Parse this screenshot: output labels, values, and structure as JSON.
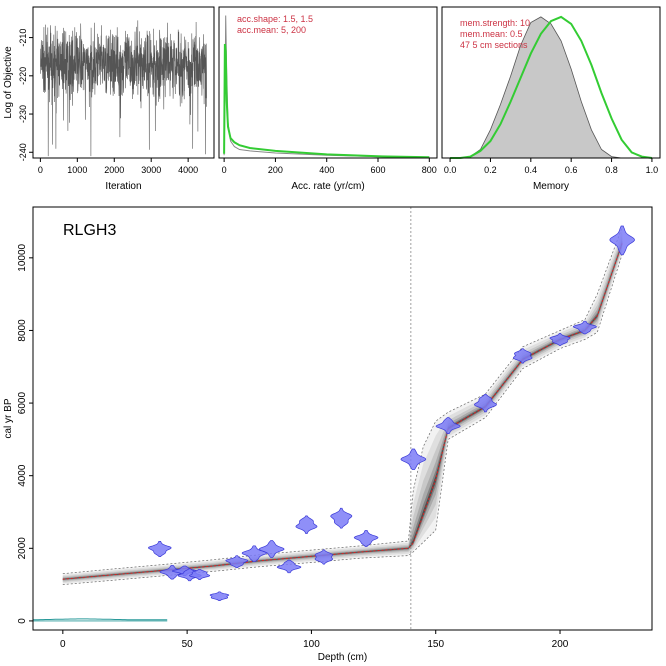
{
  "chart_data": [
    {
      "id": "iterations",
      "type": "line",
      "xlabel": "Iteration",
      "ylabel": "Log of Objective",
      "xlim": [
        -200,
        4700
      ],
      "ylim": [
        -241.5,
        -202
      ],
      "xticks": [
        0,
        1000,
        2000,
        3000,
        4000
      ],
      "yticks": [
        -240,
        -230,
        -220,
        -210
      ],
      "n_iterations": 4500,
      "trace_mean": -217,
      "trace_spread": 7,
      "color": "#555555"
    },
    {
      "id": "acc-rate",
      "type": "line",
      "xlabel": "Acc. rate (yr/cm)",
      "xlim": [
        -20,
        830
      ],
      "xticks": [
        0,
        200,
        400,
        600,
        800
      ],
      "annotations": [
        "acc.shape:  1.5, 1.5",
        "acc.mean:  5, 200"
      ],
      "series": [
        {
          "name": "posterior",
          "color": "#888888",
          "x": [
            0,
            3,
            6,
            10,
            15,
            25,
            40,
            60,
            100,
            200,
            400,
            600,
            800
          ],
          "y": [
            0.02,
            0.35,
            1.0,
            0.6,
            0.25,
            0.12,
            0.08,
            0.06,
            0.05,
            0.035,
            0.02,
            0.01,
            0.005
          ]
        },
        {
          "name": "prior",
          "color": "#33cc33",
          "x": [
            0,
            3,
            6,
            10,
            15,
            25,
            40,
            60,
            100,
            200,
            400,
            600,
            800
          ],
          "y": [
            0.03,
            0.8,
            0.75,
            0.4,
            0.22,
            0.14,
            0.11,
            0.09,
            0.07,
            0.05,
            0.025,
            0.012,
            0.005
          ]
        }
      ]
    },
    {
      "id": "memory",
      "type": "area",
      "xlabel": "Memory",
      "xlim": [
        -0.04,
        1.04
      ],
      "xticks": [
        0.0,
        0.2,
        0.4,
        0.6,
        0.8,
        1.0
      ],
      "annotations": [
        "mem.strength:  10",
        "mem.mean:  0.5",
        "47 5 cm sections"
      ],
      "series": [
        {
          "name": "posterior",
          "color": "#555555",
          "fill": "#c8c8c8",
          "x": [
            0.05,
            0.1,
            0.15,
            0.2,
            0.25,
            0.3,
            0.35,
            0.4,
            0.45,
            0.5,
            0.55,
            0.6,
            0.65,
            0.7,
            0.75,
            0.8,
            0.85
          ],
          "y": [
            0.0,
            0.01,
            0.06,
            0.2,
            0.38,
            0.58,
            0.8,
            0.96,
            1.0,
            0.95,
            0.83,
            0.63,
            0.4,
            0.2,
            0.06,
            0.01,
            0.0
          ]
        },
        {
          "name": "prior",
          "color": "#33cc33",
          "x": [
            0.0,
            0.05,
            0.1,
            0.15,
            0.2,
            0.25,
            0.3,
            0.35,
            0.4,
            0.45,
            0.5,
            0.55,
            0.6,
            0.65,
            0.7,
            0.75,
            0.8,
            0.85,
            0.9,
            0.95,
            1.0
          ],
          "y": [
            0.0,
            0.0,
            0.01,
            0.05,
            0.12,
            0.24,
            0.4,
            0.57,
            0.74,
            0.88,
            0.97,
            1.0,
            0.95,
            0.83,
            0.66,
            0.46,
            0.28,
            0.13,
            0.04,
            0.01,
            0.0
          ]
        }
      ]
    },
    {
      "id": "age-depth",
      "type": "line",
      "title": "RLGH3",
      "xlabel": "Depth (cm)",
      "ylabel": "cal yr BP",
      "xlim": [
        -12,
        237
      ],
      "ylim": [
        -250,
        11400
      ],
      "xticks": [
        0,
        50,
        100,
        150,
        200
      ],
      "yticks": [
        0,
        2000,
        4000,
        6000,
        8000,
        10000
      ],
      "hiatus_depth": 140,
      "model_mean": {
        "depth": [
          0,
          20,
          40,
          60,
          80,
          100,
          120,
          139,
          141,
          150,
          155,
          170,
          185,
          200,
          210,
          215,
          225
        ],
        "age": [
          1150,
          1270,
          1390,
          1510,
          1660,
          1780,
          1900,
          2000,
          2150,
          3900,
          5300,
          5900,
          7200,
          7750,
          8000,
          8400,
          10400
        ]
      },
      "model_upper": {
        "depth": [
          0,
          20,
          40,
          60,
          80,
          100,
          120,
          139,
          141,
          145,
          150,
          155,
          170,
          185,
          200,
          210,
          215,
          225
        ],
        "age": [
          1300,
          1430,
          1550,
          1680,
          1830,
          1950,
          2070,
          2200,
          3600,
          4800,
          5500,
          5750,
          6250,
          7550,
          8000,
          8300,
          9000,
          10850
        ]
      },
      "model_lower": {
        "depth": [
          0,
          20,
          40,
          60,
          80,
          100,
          120,
          139,
          141,
          150,
          155,
          170,
          185,
          200,
          210,
          215,
          225
        ],
        "age": [
          1000,
          1120,
          1240,
          1360,
          1500,
          1610,
          1730,
          1800,
          1900,
          2500,
          5000,
          5600,
          6950,
          7500,
          7750,
          7950,
          10100
        ]
      },
      "dates": [
        {
          "depth": 39,
          "age": 1980,
          "spread": 190
        },
        {
          "depth": 44,
          "age": 1340,
          "spread": 170
        },
        {
          "depth": 49,
          "age": 1380,
          "spread": 120
        },
        {
          "depth": 51,
          "age": 1270,
          "spread": 150
        },
        {
          "depth": 55,
          "age": 1280,
          "spread": 130
        },
        {
          "depth": 63,
          "age": 680,
          "spread": 110
        },
        {
          "depth": 70,
          "age": 1630,
          "spread": 150
        },
        {
          "depth": 77,
          "age": 1850,
          "spread": 200
        },
        {
          "depth": 84,
          "age": 1980,
          "spread": 210
        },
        {
          "depth": 91,
          "age": 1500,
          "spread": 160
        },
        {
          "depth": 98,
          "age": 2650,
          "spread": 220
        },
        {
          "depth": 105,
          "age": 1760,
          "spread": 180
        },
        {
          "depth": 112,
          "age": 2830,
          "spread": 250
        },
        {
          "depth": 122,
          "age": 2270,
          "spread": 200
        },
        {
          "depth": 141,
          "age": 4450,
          "spread": 260
        },
        {
          "depth": 155,
          "age": 5380,
          "spread": 200
        },
        {
          "depth": 170,
          "age": 6000,
          "spread": 220
        },
        {
          "depth": 185,
          "age": 7300,
          "spread": 180
        },
        {
          "depth": 200,
          "age": 7750,
          "spread": 150
        },
        {
          "depth": 210,
          "age": 8080,
          "spread": 160
        },
        {
          "depth": 225,
          "age": 10480,
          "spread": 360
        }
      ],
      "colors": {
        "date_fill": "#7b7bf7",
        "date_edge": "#3a3ad8",
        "mean": "#e02020",
        "hiatus": "#888888",
        "base": "#2a9a9a"
      }
    }
  ]
}
